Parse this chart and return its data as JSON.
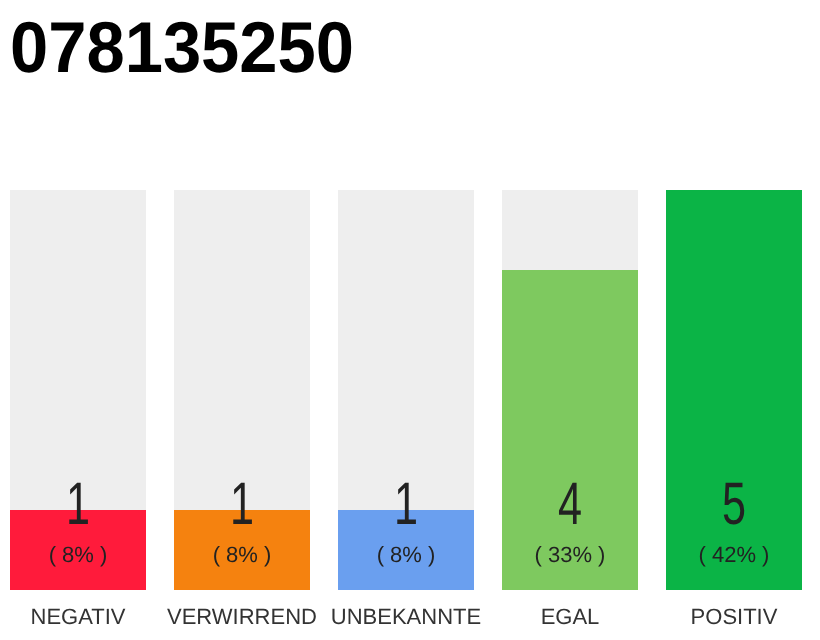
{
  "chart_data": {
    "type": "bar",
    "title": "078135250",
    "categories": [
      "NEGATIV",
      "VERWIRREND",
      "UNBEKANNTE",
      "EGAL",
      "POSITIV"
    ],
    "values": [
      1,
      1,
      1,
      4,
      5
    ],
    "colors": [
      "#ff1b3b",
      "#f5820f",
      "#6a9fef",
      "#7ec95f",
      "#0bb446"
    ],
    "value_labels": [
      "1\n( 8% )",
      "1\n( 8% )",
      "1\n( 8% )",
      "4\n( 33% )",
      "5\n( 42% )"
    ],
    "ylim": [
      0,
      5
    ],
    "tick_labels": "x"
  }
}
